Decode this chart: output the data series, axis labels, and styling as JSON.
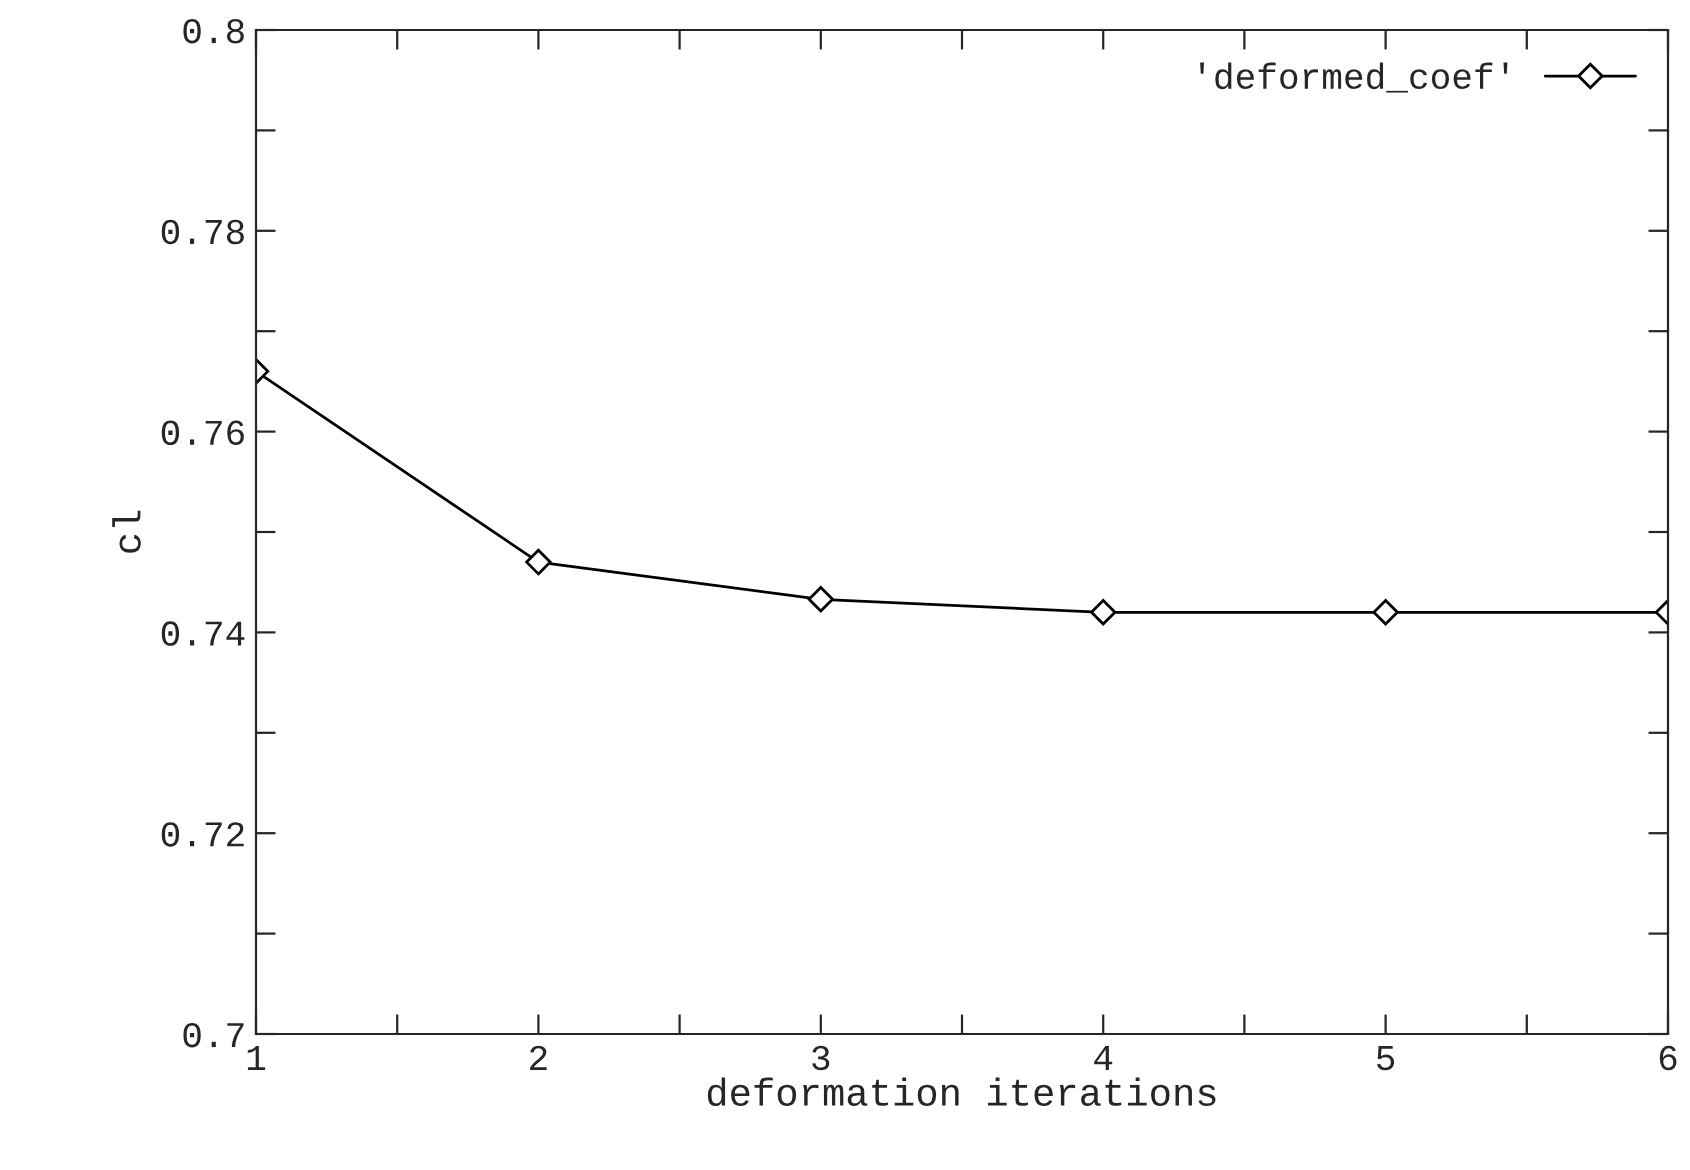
{
  "chart_data": {
    "type": "line",
    "xlabel": "deformation iterations",
    "ylabel": "cl",
    "x": [
      1,
      2,
      3,
      4,
      5,
      6
    ],
    "series": [
      {
        "name": "'deformed_coef'",
        "color": "#000000",
        "values": [
          0.766,
          0.747,
          0.7433,
          0.742,
          0.742,
          0.742
        ]
      }
    ],
    "xlim": [
      1,
      6
    ],
    "ylim": [
      0.7,
      0.8
    ],
    "xticks": [
      1,
      {
        "value": 1.5,
        "label": null
      },
      2,
      {
        "value": 2.5,
        "label": null
      },
      3,
      {
        "value": 3.5,
        "label": null
      },
      4,
      {
        "value": 4.5,
        "label": null
      },
      5,
      {
        "value": 5.5,
        "label": null
      },
      6
    ],
    "yticks": [
      {
        "value": 0.7,
        "label": "0.7"
      },
      {
        "value": 0.71,
        "label": null
      },
      {
        "value": 0.72,
        "label": "0.72"
      },
      {
        "value": 0.73,
        "label": null
      },
      {
        "value": 0.74,
        "label": "0.74"
      },
      {
        "value": 0.75,
        "label": null
      },
      {
        "value": 0.76,
        "label": "0.76"
      },
      {
        "value": 0.77,
        "label": null
      },
      {
        "value": 0.78,
        "label": "0.78"
      },
      {
        "value": 0.79,
        "label": null
      },
      {
        "value": 0.8,
        "label": "0.8"
      }
    ],
    "marker": "diamond",
    "line_style": "solid",
    "legend": "top right",
    "grid": false
  }
}
